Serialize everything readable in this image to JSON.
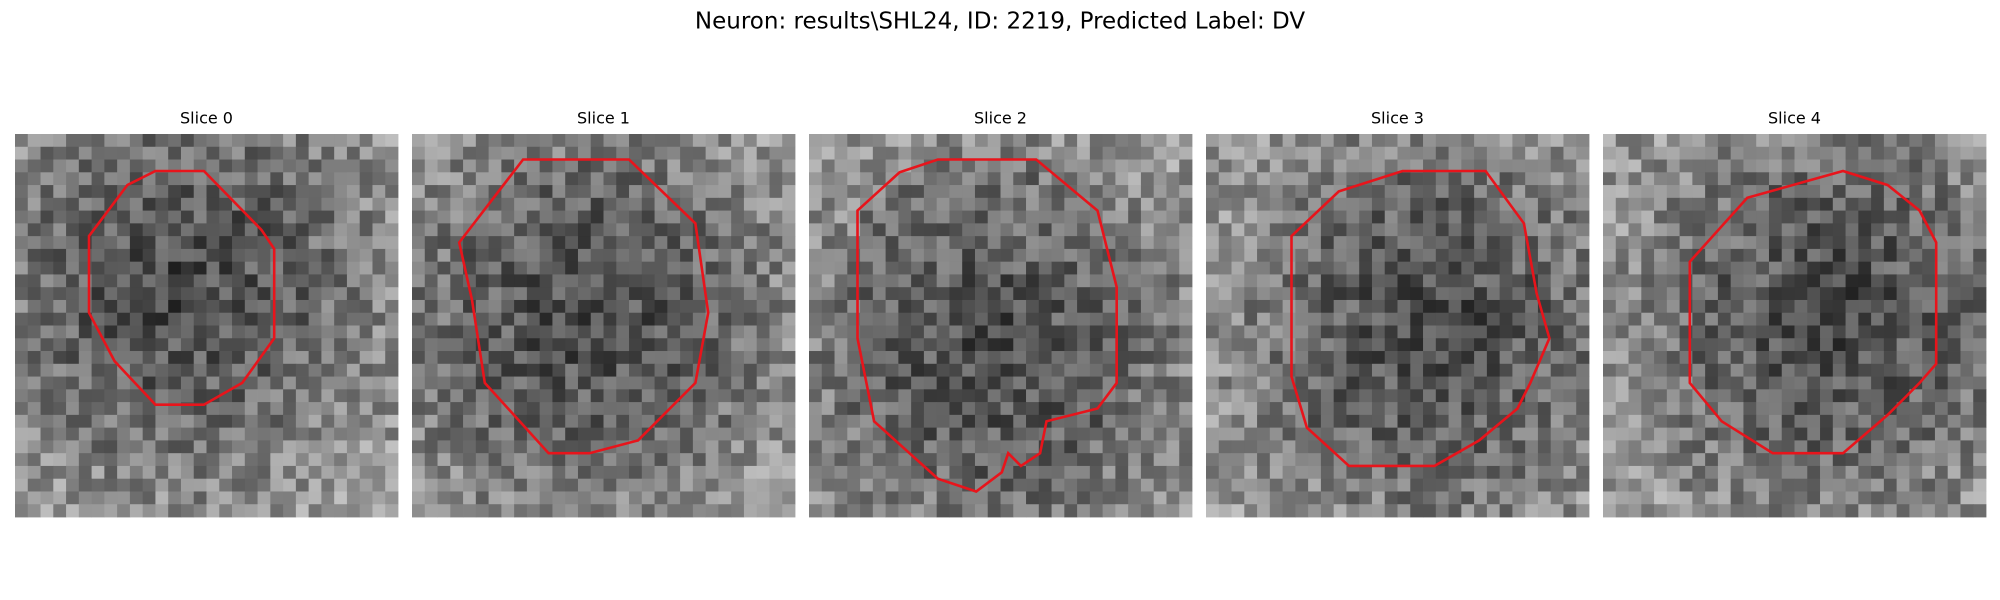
{
  "header": {
    "title": "Neuron: results\\SHL24, ID: 2219, Predicted Label: DV"
  },
  "panels": [
    {
      "title": "Slice 0"
    },
    {
      "title": "Slice 1"
    },
    {
      "title": "Slice 2"
    },
    {
      "title": "Slice 3"
    },
    {
      "title": "Slice 4"
    }
  ]
}
